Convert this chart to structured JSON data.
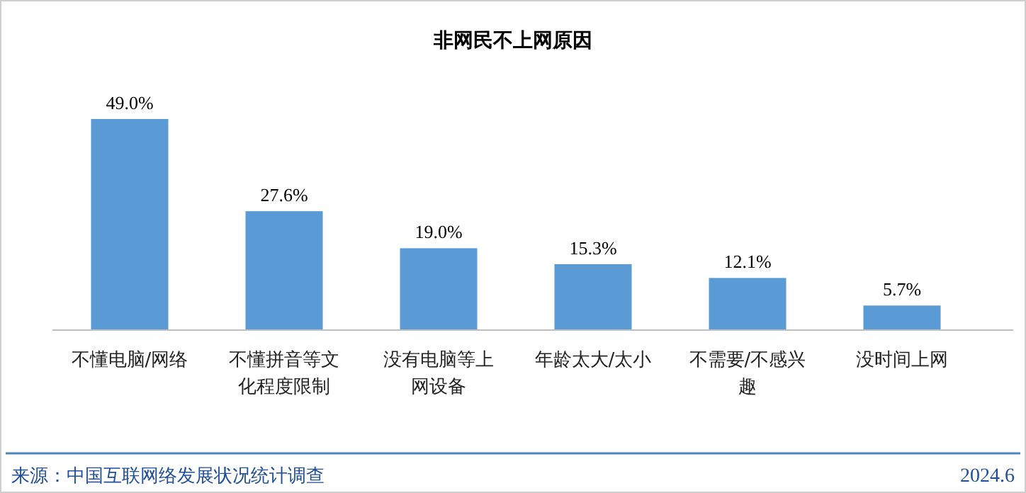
{
  "chart_data": {
    "type": "bar",
    "title": "非网民不上网原因",
    "categories": [
      "不懂电脑/网络",
      "不懂拼音等文化程度限制",
      "没有电脑等上网设备",
      "年龄太大/太小",
      "不需要/不感兴趣",
      "没时间上网"
    ],
    "values": [
      49.0,
      27.6,
      19.0,
      15.3,
      12.1,
      5.7
    ],
    "value_labels": [
      "49.0%",
      "27.6%",
      "19.0%",
      "15.3%",
      "12.1%",
      "5.7%"
    ],
    "color": "#5b9bd5",
    "annotations": [
      "来源：中国互联网络发展状况统计调查",
      "2024.6"
    ]
  }
}
